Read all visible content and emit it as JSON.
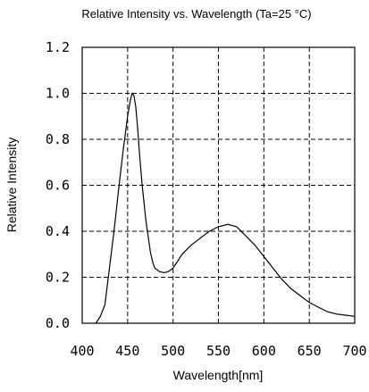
{
  "chart_data": {
    "type": "line",
    "title": "Relative Intensity vs. Wavelength (Ta=25 °C)",
    "xlabel": "Wavelength[nm]",
    "ylabel": "Relative Intensity",
    "xlim": [
      400,
      700
    ],
    "ylim": [
      0.0,
      1.2
    ],
    "x_ticks": [
      "400",
      "450",
      "500",
      "550",
      "600",
      "650",
      "700"
    ],
    "y_ticks": [
      "0.0",
      "0.2",
      "0.4",
      "0.6",
      "0.8",
      "1.0",
      "1.2"
    ],
    "grid": true,
    "series": [
      {
        "x": [
          415,
          420,
          425,
          430,
          435,
          440,
          445,
          450,
          453,
          455,
          457,
          459,
          461,
          463,
          466,
          470,
          475,
          478,
          480,
          485,
          490,
          495,
          500,
          505,
          510,
          520,
          530,
          540,
          550,
          560,
          565,
          570,
          580,
          590,
          600,
          610,
          620,
          630,
          640,
          650,
          660,
          670,
          680,
          690,
          700
        ],
        "y": [
          0.0,
          0.03,
          0.08,
          0.24,
          0.4,
          0.58,
          0.75,
          0.9,
          0.97,
          1.0,
          0.99,
          0.94,
          0.85,
          0.74,
          0.6,
          0.45,
          0.31,
          0.26,
          0.24,
          0.225,
          0.22,
          0.225,
          0.24,
          0.27,
          0.3,
          0.34,
          0.37,
          0.4,
          0.42,
          0.43,
          0.425,
          0.42,
          0.38,
          0.34,
          0.29,
          0.24,
          0.19,
          0.15,
          0.12,
          0.09,
          0.07,
          0.05,
          0.04,
          0.035,
          0.03
        ]
      }
    ]
  }
}
